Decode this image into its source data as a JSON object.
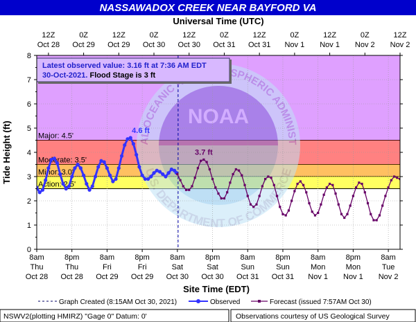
{
  "title": "NASSAWADOX CREEK NEAR BAYFORD VA",
  "top_axis_title": "Universal Time (UTC)",
  "bottom_axis_title": "Site Time (EDT)",
  "y_axis_title": "Tide Height (ft)",
  "top_ticks": [
    {
      "t": 4,
      "line1": "12Z",
      "line2": "Oct 28"
    },
    {
      "t": 16,
      "line1": "0Z",
      "line2": "Oct 29"
    },
    {
      "t": 28,
      "line1": "12Z",
      "line2": "Oct 29"
    },
    {
      "t": 40,
      "line1": "0Z",
      "line2": "Oct 30"
    },
    {
      "t": 52,
      "line1": "12Z",
      "line2": "Oct 30"
    },
    {
      "t": 64,
      "line1": "0Z",
      "line2": "Oct 31"
    },
    {
      "t": 76,
      "line1": "12Z",
      "line2": "Oct 31"
    },
    {
      "t": 88,
      "line1": "0Z",
      "line2": "Nov 1"
    },
    {
      "t": 100,
      "line1": "12Z",
      "line2": "Nov 1"
    },
    {
      "t": 112,
      "line1": "0Z",
      "line2": "Nov 2"
    },
    {
      "t": 124,
      "line1": "12Z",
      "line2": "Nov 2"
    }
  ],
  "bottom_ticks": [
    {
      "t": 0,
      "line1": "8am",
      "line2": "Thu",
      "line3": "Oct 28"
    },
    {
      "t": 12,
      "line1": "8pm",
      "line2": "Thu",
      "line3": "Oct 28"
    },
    {
      "t": 24,
      "line1": "8am",
      "line2": "Fri",
      "line3": "Oct 29"
    },
    {
      "t": 36,
      "line1": "8pm",
      "line2": "Fri",
      "line3": "Oct 29"
    },
    {
      "t": 48,
      "line1": "8am",
      "line2": "Sat",
      "line3": "Oct 30"
    },
    {
      "t": 60,
      "line1": "8pm",
      "line2": "Sat",
      "line3": "Oct 30"
    },
    {
      "t": 72,
      "line1": "8am",
      "line2": "Sun",
      "line3": "Oct 31"
    },
    {
      "t": 84,
      "line1": "8pm",
      "line2": "Sun",
      "line3": "Oct 31"
    },
    {
      "t": 96,
      "line1": "8am",
      "line2": "Mon",
      "line3": "Nov 1"
    },
    {
      "t": 108,
      "line1": "8pm",
      "line2": "Mon",
      "line3": "Nov 1"
    },
    {
      "t": 120,
      "line1": "8am",
      "line2": "Tue",
      "line3": "Nov 2"
    }
  ],
  "y_ticks": [
    0,
    1,
    2,
    3,
    4,
    5,
    6,
    7,
    8
  ],
  "stage_zones": [
    {
      "name": "Major",
      "label": "Major: 4.5'",
      "from": 4.5,
      "to": 8,
      "color": "#cc66ff",
      "alpha": 0.62
    },
    {
      "name": "Moderate",
      "label": "Moderate: 3.5'",
      "from": 3.5,
      "to": 4.5,
      "color": "#ff3333",
      "alpha": 0.62
    },
    {
      "name": "Minor",
      "label": "Minor: 3.0'",
      "from": 3.0,
      "to": 3.5,
      "color": "#ff9900",
      "alpha": 0.62
    },
    {
      "name": "Action",
      "label": "Action: 2.5'",
      "from": 2.5,
      "to": 3.0,
      "color": "#ffff00",
      "alpha": 0.62
    }
  ],
  "info_box": {
    "line1": "Latest observed value: 3.16 ft at 7:36 AM EDT",
    "line2_bold": "30-Oct-2021.",
    "line2_rest": " Flood Stage is 3 ft"
  },
  "peak_labels": [
    {
      "text": "4.6 ft",
      "t": 35.5,
      "y": 4.6,
      "color": "#3333ff"
    },
    {
      "text": "3.7 ft",
      "t": 57,
      "y": 3.7,
      "color": "#660066"
    }
  ],
  "legend": {
    "graph_created": "Graph Created (8:15AM Oct 30, 2021)",
    "observed": "Observed",
    "forecast": "Forecast (issued 7:57AM Oct 30)"
  },
  "footer": {
    "left": "NSWV2(plotting HMIRZ) \"Gage 0\" Datum: 0'",
    "right": "Observations courtesy of US Geological Survey"
  },
  "watermark": {
    "ring_top": "NATIONAL OCEANIC AND ATMOSPHERIC ADMINISTRATION",
    "ring_bottom": "U.S. DEPARTMENT OF COMMERCE",
    "center": "NOAA"
  },
  "colors": {
    "observed": "#3333ff",
    "forecast": "#660066",
    "title_bg": "#0000cc",
    "title_text": "#ffffff"
  },
  "chart_data": {
    "type": "line",
    "title": "NASSAWADOX CREEK NEAR BAYFORD VA",
    "xlabel": "Site Time (EDT)",
    "ylabel": "Tide Height (ft)",
    "x_unit": "hours after 8am EDT Thu Oct 28, 2021",
    "xlim": [
      0,
      124
    ],
    "ylim": [
      0,
      8
    ],
    "grid": true,
    "graph_created_t": 48.25,
    "series": [
      {
        "name": "Observed",
        "x": [
          0,
          1,
          2,
          3,
          4,
          5,
          6,
          7,
          8,
          9,
          10,
          11,
          12,
          13,
          14,
          15,
          16,
          17,
          18,
          19,
          20,
          21,
          22,
          23,
          24,
          25,
          26,
          27,
          28,
          29,
          30,
          31,
          32,
          33,
          34,
          35,
          36,
          37,
          38,
          39,
          40,
          41,
          42,
          43,
          44,
          45,
          46,
          47,
          47.6
        ],
        "y": [
          2.55,
          2.35,
          2.45,
          2.85,
          3.35,
          3.7,
          3.75,
          3.55,
          3.1,
          2.7,
          2.5,
          2.6,
          3.0,
          3.35,
          3.5,
          3.35,
          3.05,
          2.7,
          2.45,
          2.6,
          3.0,
          3.4,
          3.65,
          3.6,
          3.35,
          3.05,
          2.8,
          2.9,
          3.35,
          3.85,
          4.3,
          4.55,
          4.6,
          4.35,
          3.9,
          3.4,
          3.05,
          2.9,
          2.9,
          3.0,
          3.15,
          3.25,
          3.2,
          3.1,
          3.0,
          3.15,
          3.3,
          3.25,
          3.16
        ]
      },
      {
        "name": "Forecast (issued 7:57AM Oct 30)",
        "x": [
          48,
          49,
          50,
          51,
          52,
          53,
          54,
          55,
          56,
          57,
          58,
          59,
          60,
          61,
          62,
          63,
          64,
          65,
          66,
          67,
          68,
          69,
          70,
          71,
          72,
          73,
          74,
          75,
          76,
          77,
          78,
          79,
          80,
          81,
          82,
          83,
          84,
          85,
          86,
          87,
          88,
          89,
          90,
          91,
          92,
          93,
          94,
          95,
          96,
          97,
          98,
          99,
          100,
          101,
          102,
          103,
          104,
          105,
          106,
          107,
          108,
          109,
          110,
          111,
          112,
          113,
          114,
          115,
          116,
          117,
          118,
          119,
          120,
          121,
          122,
          123,
          124
        ],
        "y": [
          3.1,
          2.85,
          2.6,
          2.45,
          2.45,
          2.6,
          2.95,
          3.35,
          3.65,
          3.7,
          3.6,
          3.3,
          2.9,
          2.55,
          2.3,
          2.1,
          2.1,
          2.35,
          2.75,
          3.1,
          3.3,
          3.25,
          3.05,
          2.65,
          2.2,
          1.85,
          1.75,
          1.85,
          2.2,
          2.6,
          2.9,
          3.0,
          2.95,
          2.65,
          2.2,
          1.75,
          1.45,
          1.4,
          1.6,
          2.0,
          2.4,
          2.7,
          2.8,
          2.65,
          2.35,
          1.9,
          1.55,
          1.4,
          1.5,
          1.85,
          2.25,
          2.55,
          2.7,
          2.65,
          2.3,
          1.85,
          1.45,
          1.3,
          1.45,
          1.8,
          2.2,
          2.55,
          2.75,
          2.7,
          2.35,
          1.9,
          1.45,
          1.2,
          1.2,
          1.4,
          1.8,
          2.2,
          2.55,
          2.85,
          3.0,
          2.95,
          2.9
        ]
      }
    ]
  }
}
